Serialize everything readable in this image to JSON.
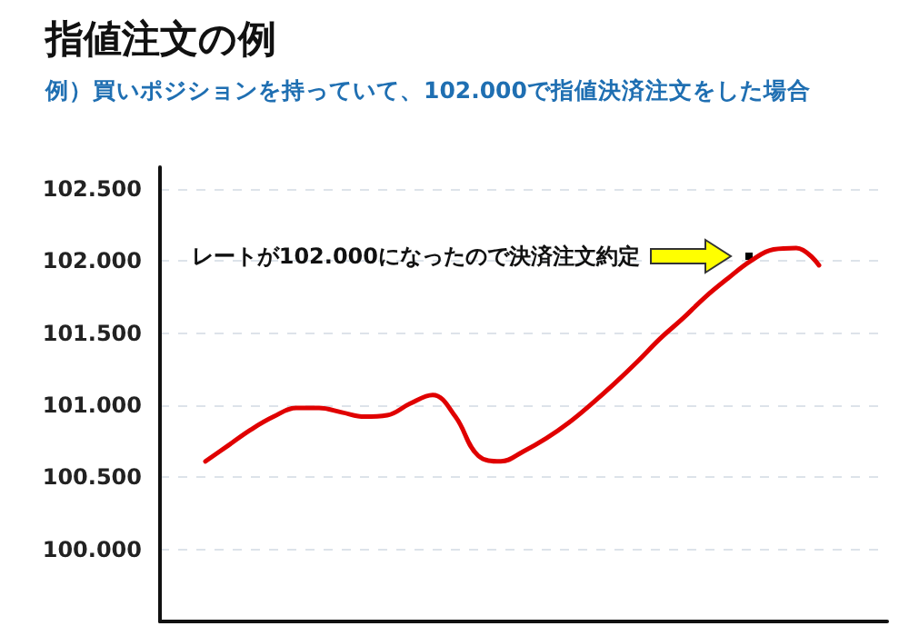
{
  "chart_data": {
    "type": "line",
    "title": "指値注文の例",
    "subtitle": "例）買いポジションを持っていて、102.000で指値決済注文をした場合",
    "categories": [
      null,
      null,
      null,
      null,
      null,
      null,
      null,
      null,
      null,
      null,
      null,
      null,
      null,
      null,
      null,
      null,
      null,
      null,
      null,
      null,
      null,
      null,
      null,
      null,
      null,
      null,
      null,
      null,
      null,
      null,
      null,
      null,
      null
    ],
    "series": [
      {
        "color": "#e00000",
        "values": [
          null,
          null,
          100.61,
          100.72,
          100.83,
          100.92,
          100.98,
          100.98,
          100.95,
          100.92,
          100.93,
          101.01,
          101.07,
          100.92,
          100.65,
          100.61,
          100.68,
          100.77,
          100.88,
          101.01,
          101.15,
          101.3,
          101.46,
          101.6,
          101.75,
          101.88,
          102.0,
          102.08,
          102.09,
          101.97,
          null,
          null,
          null
        ]
      }
    ],
    "ylim": [
      99.5,
      102.65
    ],
    "yticks": [
      {
        "value": 100,
        "label": "100.000"
      },
      {
        "value": 100.5,
        "label": "100.500"
      },
      {
        "value": 101,
        "label": "101.000"
      },
      {
        "value": 101.5,
        "label": "101.500"
      },
      {
        "value": 102,
        "label": "102.000"
      },
      {
        "value": 102.5,
        "label": "102.500"
      }
    ],
    "grid": "y",
    "marker": "none",
    "line_style": "solid",
    "tick_labels": "y",
    "annotations": [
      "レートが102.000になったので決済注文約定"
    ]
  }
}
